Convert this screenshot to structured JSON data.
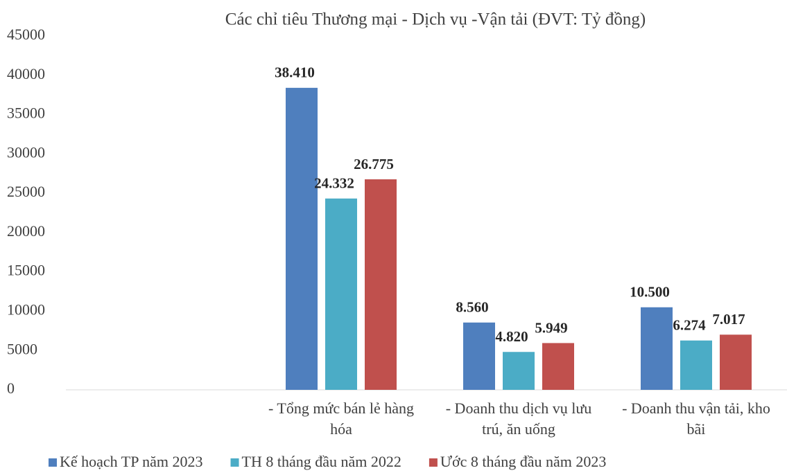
{
  "chart_data": {
    "type": "bar",
    "title": "Các chỉ tiêu Thương mại - Dịch vụ -Vận tải (ĐVT: Tỷ đồng)",
    "categories": [
      null,
      "- Tổng mức bán lẻ hàng hóa",
      "- Doanh thu dịch vụ lưu trú, ăn uống",
      "- Doanh thu vận tải, kho bãi"
    ],
    "series": [
      {
        "name": "Kế hoạch TP năm 2023",
        "color": "#4f7fbe",
        "values": [
          null,
          38410,
          8560,
          10500
        ],
        "value_labels": [
          null,
          "38.410",
          "8.560",
          "10.500"
        ]
      },
      {
        "name": "TH 8 tháng đầu năm 2022",
        "color": "#4bacc6",
        "values": [
          null,
          24332,
          4820,
          6274
        ],
        "value_labels": [
          null,
          "24.332",
          "4.820",
          "6.274"
        ]
      },
      {
        "name": "Ước 8 tháng đầu năm 2023",
        "color": "#c0504d",
        "values": [
          null,
          26775,
          5949,
          7017
        ],
        "value_labels": [
          null,
          "26.775",
          "5.949",
          "7.017"
        ]
      }
    ],
    "ylim": [
      0,
      45000
    ],
    "yticks": [
      0,
      5000,
      10000,
      15000,
      20000,
      25000,
      30000,
      35000,
      40000,
      45000
    ],
    "grid": false,
    "legend": "bottom"
  }
}
